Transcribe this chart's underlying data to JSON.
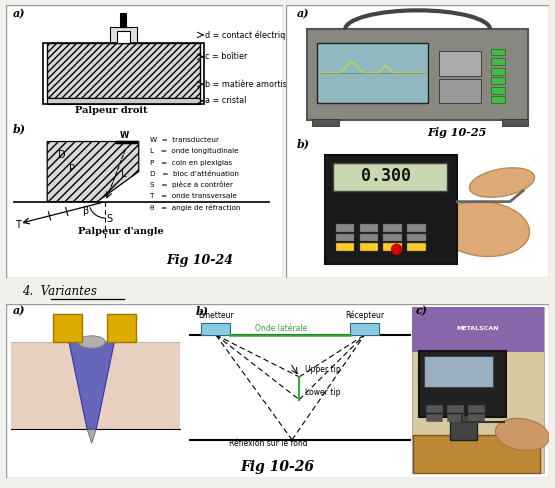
{
  "bg_color": "#f0f0ec",
  "white": "#ffffff",
  "black": "#000000",
  "border_color": "#999999",
  "title_text": "4.  Variantes",
  "fig1024_label": "Fig 10-24",
  "fig1025_label": "Fig 10-25",
  "fig1026_label": "Fig 10-26",
  "legend_W": "W  =  transducteur",
  "legend_L": "L   =  onde longitudinale",
  "legend_P": "P   =  coin en plexiglas",
  "legend_D": "D   =  bloc d'atténuation",
  "legend_S": "S   =  pièce à contrôler",
  "legend_T": "T   =  onde transversale",
  "legend_theta": "θ   =  angle de réfraction",
  "label_d": "d = contact électrique",
  "label_c": "c = boîtier",
  "label_b": "b = matière amortissante",
  "label_a": "a = cristal",
  "label_palpeur_droit": "Palpeur droit",
  "label_palpeur_angle": "Palpeur d'angle",
  "label_emetteur": "Emetteur",
  "label_recepteur": "Récepteur",
  "label_onde_laterale": "Onde latérale",
  "label_upper_tip": "Upper tip",
  "label_lower_tip": "Lower tip",
  "label_reflexion": "Réflexion sur le fond"
}
